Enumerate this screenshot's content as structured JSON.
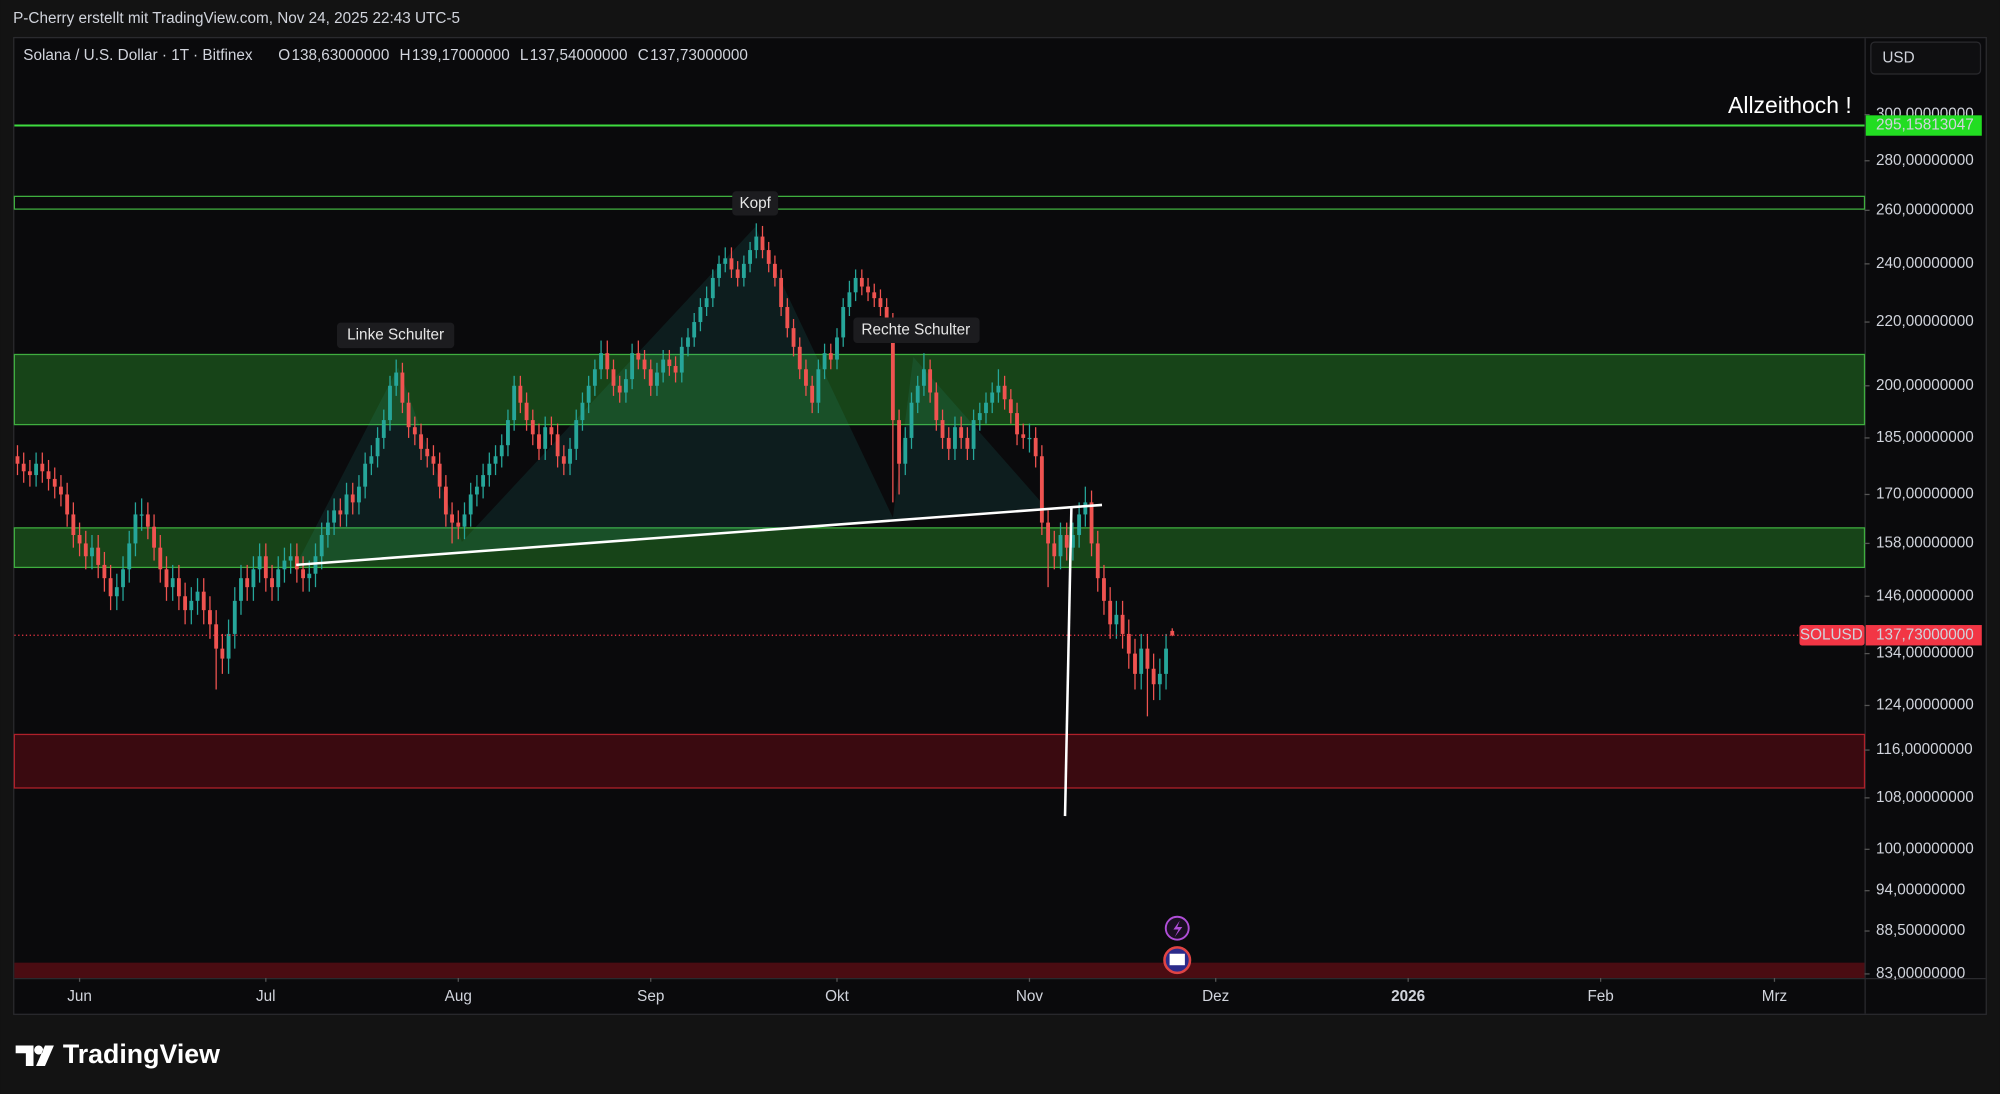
{
  "chart_data": {
    "type": "candlestick",
    "attribution": "P-Cherry erstellt mit TradingView.com, Nov 24, 2025 22:43 UTC-5",
    "title": "Solana / U.S. Dollar · 1T · Bitfinex",
    "ohlc_legend": [
      {
        "name": "O",
        "value": {
          "value": 138.63,
          "label": "138,63000000"
        }
      },
      {
        "name": "H",
        "value": {
          "value": 139.17,
          "label": "139,17000000"
        }
      },
      {
        "name": "L",
        "value": {
          "value": 137.54,
          "label": "137,54000000"
        }
      },
      {
        "name": "C",
        "value": {
          "value": 137.73,
          "label": "137,73000000"
        }
      }
    ],
    "currency": "USD",
    "symbol": "SOLUSD",
    "up_color": "#26a69a",
    "down_color": "#ef5350",
    "log_scale": true,
    "grid": false,
    "candles": {
      "open": [
        180,
        178,
        176,
        175,
        178,
        176,
        174,
        172,
        170,
        165,
        160,
        158,
        155,
        157,
        153,
        150,
        146,
        148,
        152,
        158,
        165,
        165,
        162,
        157,
        152,
        148,
        150,
        146,
        143,
        145,
        147,
        143,
        140,
        135,
        133,
        138,
        145,
        150,
        148,
        152,
        155,
        150,
        148,
        152,
        154,
        155,
        152,
        150,
        151,
        155,
        160,
        163,
        166,
        165,
        170,
        168,
        172,
        178,
        180,
        185,
        190,
        200,
        204,
        195,
        188,
        186,
        182,
        180,
        178,
        172,
        165,
        163,
        162,
        165,
        170,
        172,
        175,
        178,
        180,
        183,
        190,
        200,
        195,
        190,
        186,
        182,
        188,
        186,
        180,
        178,
        182,
        190,
        195,
        200,
        205,
        210,
        205,
        200,
        198,
        202,
        210,
        208,
        205,
        200,
        204,
        208,
        206,
        204,
        212,
        215,
        220,
        225,
        228,
        235,
        240,
        242,
        238,
        235,
        240,
        245,
        250,
        245,
        240,
        235,
        225,
        218,
        212,
        205,
        200,
        195,
        205,
        210,
        208,
        215,
        225,
        230,
        235,
        232,
        230,
        228,
        225,
        220,
        190,
        178,
        185,
        195,
        200,
        205,
        198,
        190,
        185,
        182,
        188,
        185,
        182,
        190,
        192,
        195,
        198,
        200,
        196,
        192,
        186,
        185,
        185,
        180,
        163,
        158,
        155,
        160,
        157,
        160,
        165,
        168,
        158,
        150,
        145,
        140,
        142,
        138,
        134,
        130,
        135,
        131,
        128,
        130,
        138.63
      ],
      "high": [
        183,
        181,
        179,
        181,
        181,
        179,
        177,
        175,
        173,
        168,
        163,
        161,
        160,
        160,
        156,
        153,
        151,
        155,
        161,
        168,
        169,
        168,
        165,
        160,
        155,
        153,
        153,
        149,
        148,
        150,
        150,
        146,
        143,
        138,
        141,
        148,
        153,
        153,
        155,
        158,
        158,
        153,
        155,
        157,
        158,
        158,
        155,
        154,
        158,
        163,
        166,
        169,
        169,
        173,
        173,
        175,
        181,
        183,
        188,
        193,
        203,
        208,
        207,
        198,
        191,
        189,
        185,
        183,
        181,
        175,
        168,
        166,
        168,
        173,
        175,
        178,
        181,
        183,
        186,
        193,
        203,
        203,
        198,
        193,
        189,
        191,
        191,
        189,
        183,
        185,
        193,
        198,
        203,
        208,
        214,
        214,
        208,
        203,
        205,
        213,
        214,
        211,
        208,
        207,
        211,
        211,
        209,
        215,
        218,
        223,
        228,
        232,
        238,
        243,
        246,
        246,
        241,
        243,
        248,
        255,
        254,
        248,
        243,
        238,
        228,
        221,
        215,
        208,
        203,
        208,
        213,
        213,
        218,
        228,
        234,
        238,
        238,
        235,
        233,
        231,
        228,
        223,
        193,
        188,
        198,
        203,
        210,
        208,
        201,
        193,
        188,
        191,
        191,
        188,
        193,
        195,
        198,
        201,
        205,
        203,
        199,
        195,
        189,
        189,
        188,
        183,
        166,
        161,
        163,
        163,
        163,
        168,
        172,
        171,
        161,
        153,
        148,
        145,
        145,
        141,
        137,
        138,
        138,
        134,
        133,
        138,
        139.17
      ],
      "low": [
        175,
        173,
        172,
        172,
        173,
        171,
        169,
        167,
        162,
        157,
        155,
        152,
        152,
        150,
        147,
        143,
        143,
        145,
        149,
        155,
        161,
        159,
        154,
        149,
        145,
        145,
        143,
        140,
        140,
        142,
        140,
        137,
        127,
        130,
        130,
        135,
        142,
        145,
        145,
        149,
        147,
        145,
        145,
        149,
        151,
        149,
        147,
        147,
        148,
        152,
        157,
        160,
        162,
        162,
        165,
        165,
        169,
        175,
        177,
        182,
        187,
        197,
        192,
        185,
        183,
        179,
        177,
        175,
        169,
        162,
        158,
        159,
        159,
        162,
        167,
        169,
        172,
        175,
        177,
        180,
        187,
        192,
        187,
        183,
        179,
        179,
        183,
        177,
        175,
        175,
        179,
        187,
        192,
        197,
        202,
        202,
        197,
        195,
        195,
        199,
        205,
        202,
        197,
        197,
        201,
        203,
        201,
        201,
        209,
        212,
        217,
        222,
        225,
        232,
        237,
        235,
        232,
        232,
        237,
        242,
        242,
        237,
        232,
        222,
        215,
        209,
        202,
        197,
        192,
        192,
        202,
        205,
        205,
        212,
        222,
        227,
        229,
        227,
        225,
        222,
        217,
        168,
        170,
        175,
        182,
        192,
        197,
        195,
        187,
        182,
        179,
        179,
        182,
        179,
        179,
        187,
        189,
        192,
        195,
        193,
        189,
        183,
        182,
        181,
        177,
        160,
        148,
        152,
        152,
        154,
        154,
        157,
        162,
        155,
        147,
        142,
        137,
        137,
        135,
        131,
        127,
        127,
        122,
        125,
        125,
        127,
        137.54
      ],
      "close": [
        178,
        176,
        175,
        178,
        176,
        174,
        172,
        170,
        165,
        160,
        158,
        155,
        157,
        153,
        150,
        146,
        148,
        152,
        158,
        165,
        165,
        162,
        157,
        152,
        148,
        150,
        146,
        143,
        145,
        147,
        143,
        140,
        135,
        133,
        138,
        145,
        150,
        148,
        152,
        155,
        150,
        148,
        152,
        154,
        155,
        152,
        150,
        151,
        155,
        160,
        163,
        166,
        165,
        170,
        168,
        172,
        178,
        180,
        185,
        190,
        200,
        204,
        195,
        188,
        186,
        182,
        180,
        178,
        172,
        165,
        163,
        162,
        165,
        170,
        172,
        175,
        178,
        180,
        183,
        190,
        200,
        195,
        190,
        186,
        182,
        188,
        186,
        180,
        178,
        182,
        190,
        195,
        200,
        205,
        210,
        205,
        200,
        198,
        202,
        210,
        208,
        205,
        200,
        204,
        208,
        206,
        204,
        212,
        215,
        220,
        225,
        228,
        235,
        240,
        242,
        238,
        235,
        240,
        245,
        250,
        245,
        240,
        235,
        225,
        218,
        212,
        205,
        200,
        195,
        205,
        210,
        208,
        215,
        225,
        230,
        235,
        232,
        230,
        228,
        225,
        220,
        190,
        178,
        185,
        195,
        200,
        205,
        198,
        190,
        185,
        182,
        188,
        185,
        182,
        190,
        192,
        195,
        198,
        200,
        196,
        192,
        186,
        185,
        185,
        180,
        163,
        158,
        155,
        160,
        157,
        160,
        165,
        168,
        158,
        150,
        145,
        140,
        142,
        138,
        134,
        130,
        135,
        131,
        128,
        130,
        135,
        137.73
      ]
    },
    "xlim": [
      -0.5,
      297.5
    ],
    "xticks": [
      {
        "value": 10,
        "label": "Jun"
      },
      {
        "value": 40,
        "label": "Jul"
      },
      {
        "value": 71,
        "label": "Aug"
      },
      {
        "value": 102,
        "label": "Sep"
      },
      {
        "value": 132,
        "label": "Okt"
      },
      {
        "value": 163,
        "label": "Nov"
      },
      {
        "value": 193,
        "label": "Dez"
      },
      {
        "value": 224,
        "label": "2026"
      },
      {
        "value": 255,
        "label": "Feb"
      },
      {
        "value": 283,
        "label": "Mrz"
      }
    ],
    "ylim": [
      82.5,
      336.3
    ],
    "yticks": [
      {
        "value": 300,
        "label": "300,00000000"
      },
      {
        "value": 280,
        "label": "280,00000000"
      },
      {
        "value": 260,
        "label": "260,00000000"
      },
      {
        "value": 240,
        "label": "240,00000000"
      },
      {
        "value": 220,
        "label": "220,00000000"
      },
      {
        "value": 200,
        "label": "200,00000000"
      },
      {
        "value": 185,
        "label": "185,00000000"
      },
      {
        "value": 170,
        "label": "170,00000000"
      },
      {
        "value": 158,
        "label": "158,00000000"
      },
      {
        "value": 146,
        "label": "146,00000000"
      },
      {
        "value": 134,
        "label": "134,00000000"
      },
      {
        "value": 124,
        "label": "124,00000000"
      },
      {
        "value": 116,
        "label": "116,00000000"
      },
      {
        "value": 108,
        "label": "108,00000000"
      },
      {
        "value": 100,
        "label": "100,00000000"
      },
      {
        "value": 94,
        "label": "94,00000000"
      },
      {
        "value": 88.5,
        "label": "88,50000000"
      },
      {
        "value": 83,
        "label": "83,00000000"
      }
    ],
    "ath_level": {
      "value": 295.15813047,
      "label": "295,15813047"
    },
    "last_price": {
      "value": 137.73,
      "label": "137,73000000"
    },
    "annotations": [
      "Allzeithoch !",
      "Linke Schulter",
      "Kopf",
      "Rechte Schulter"
    ],
    "brand": "TradingView"
  }
}
